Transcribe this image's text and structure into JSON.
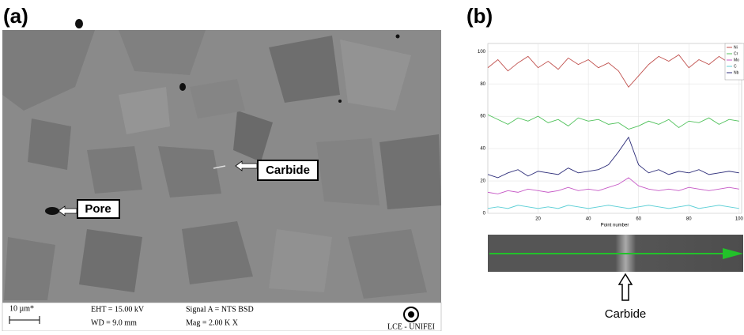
{
  "panel_a": {
    "label": "(a)",
    "annotations": [
      "Carbide",
      "Pore"
    ],
    "info_bar": {
      "scale": "10 µm*",
      "eht": "EHT = 15.00 kV",
      "wd": "WD = 9.0 mm",
      "signal": "Signal A = NTS BSD",
      "mag": "Mag =   2.00 K X",
      "lab": "LCE - UNIFEI"
    }
  },
  "panel_b": {
    "label": "(b)",
    "annotation": "Carbide"
  },
  "chart_data": {
    "type": "line",
    "x_label": "Point number",
    "x": [
      0,
      4,
      8,
      12,
      16,
      20,
      24,
      28,
      32,
      36,
      40,
      44,
      48,
      52,
      56,
      60,
      64,
      68,
      72,
      76,
      80,
      84,
      88,
      92,
      96,
      100
    ],
    "xlim": [
      0,
      101
    ],
    "xticks": [
      20,
      40,
      60,
      80,
      100
    ],
    "ylim": [
      0,
      105
    ],
    "yticks": [
      0,
      20,
      40,
      60,
      80,
      100
    ],
    "grid": true,
    "series": [
      {
        "name": "Ni",
        "color": "#c0504d",
        "values": [
          90,
          95,
          88,
          93,
          97,
          90,
          94,
          89,
          96,
          92,
          95,
          90,
          93,
          88,
          78,
          85,
          92,
          97,
          94,
          98,
          90,
          95,
          92,
          97,
          93,
          96
        ]
      },
      {
        "name": "Cr",
        "color": "#4fc15a",
        "values": [
          61,
          58,
          55,
          59,
          57,
          60,
          56,
          58,
          54,
          59,
          57,
          58,
          55,
          56,
          52,
          54,
          57,
          55,
          58,
          53,
          57,
          56,
          59,
          55,
          58,
          57
        ]
      },
      {
        "name": "Mo",
        "color": "#c659c6",
        "values": [
          13,
          12,
          14,
          13,
          15,
          14,
          13,
          14,
          16,
          14,
          15,
          14,
          16,
          18,
          22,
          17,
          15,
          14,
          15,
          14,
          16,
          15,
          14,
          15,
          16,
          15
        ]
      },
      {
        "name": "C",
        "color": "#5ccfd6",
        "values": [
          3,
          4,
          3,
          5,
          4,
          3,
          4,
          3,
          5,
          4,
          3,
          4,
          5,
          4,
          3,
          4,
          5,
          4,
          3,
          4,
          5,
          3,
          4,
          5,
          4,
          3
        ]
      },
      {
        "name": "Nb",
        "color": "#2e2e7a",
        "values": [
          24,
          22,
          25,
          27,
          23,
          26,
          25,
          24,
          28,
          25,
          26,
          27,
          30,
          38,
          47,
          30,
          25,
          27,
          24,
          26,
          25,
          27,
          24,
          25,
          26,
          25
        ]
      }
    ]
  }
}
